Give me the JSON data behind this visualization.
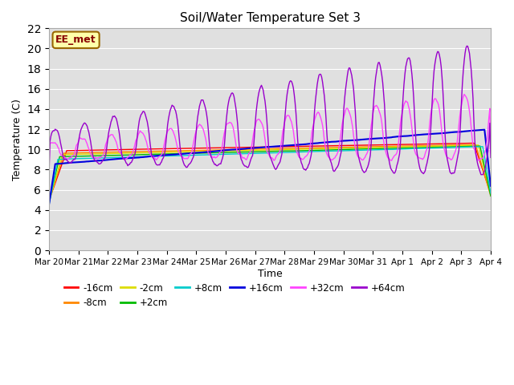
{
  "title": "Soil/Water Temperature Set 3",
  "xlabel": "Time",
  "ylabel": "Temperature (C)",
  "ylim": [
    0,
    22
  ],
  "yticks": [
    0,
    2,
    4,
    6,
    8,
    10,
    12,
    14,
    16,
    18,
    20,
    22
  ],
  "plot_bg": "#e0e0e0",
  "grid_color": "#ffffff",
  "series_colors": {
    "-16cm": "#ff0000",
    "-8cm": "#ff8800",
    "-2cm": "#dddd00",
    "+2cm": "#00bb00",
    "+8cm": "#00cccc",
    "+16cm": "#0000dd",
    "+32cm": "#ff44ff",
    "+64cm": "#9900cc"
  },
  "tick_labels": [
    "Mar 20",
    "Mar 21",
    "Mar 22",
    "Mar 23",
    "Mar 24",
    "Mar 25",
    "Mar 26",
    "Mar 27",
    "Mar 28",
    "Mar 29",
    "Mar 30",
    "Mar 31",
    "Apr 1",
    "Apr 2",
    "Apr 3",
    "Apr 4"
  ],
  "annotation_text": "EE_met",
  "annotation_box_color": "#ffffaa",
  "annotation_border_color": "#996600"
}
